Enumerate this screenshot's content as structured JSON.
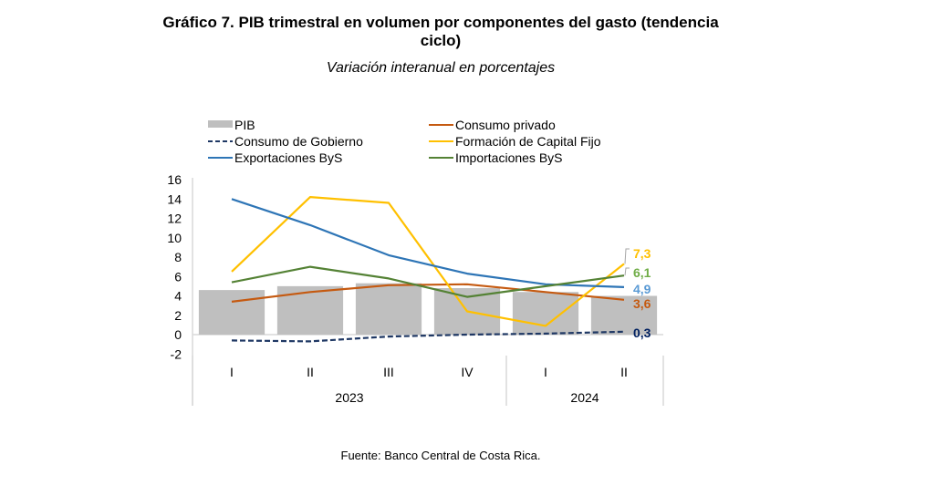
{
  "chart_data": {
    "type": "bar+line",
    "title": "Gráfico 7. PIB trimestral en volumen por componentes del gasto (tendencia ciclo)",
    "title_lines": [
      "Gráfico 7. PIB trimestral en volumen por componentes del gasto (tendencia",
      "ciclo)"
    ],
    "subtitle": "Variación interanual en porcentajes",
    "source": "Fuente: Banco Central de Costa Rica.",
    "xlabel": "",
    "ylabel": "",
    "ylim": [
      -2,
      16
    ],
    "yticks": [
      -2,
      0,
      2,
      4,
      6,
      8,
      10,
      12,
      14,
      16
    ],
    "grid": false,
    "legend_position": "top",
    "categories": [
      "I",
      "II",
      "III",
      "IV",
      "I",
      "II"
    ],
    "year_groups": [
      {
        "label": "2023",
        "count": 4
      },
      {
        "label": "2024",
        "count": 2
      }
    ],
    "series": [
      {
        "name": "PIB",
        "kind": "bar",
        "color": "#bfbfbf",
        "values": [
          4.6,
          5.0,
          5.3,
          4.8,
          4.4,
          4.0
        ],
        "end_label": null
      },
      {
        "name": "Consumo privado",
        "kind": "line",
        "color": "#c55a11",
        "dashed": false,
        "values": [
          3.4,
          4.4,
          5.1,
          5.2,
          4.4,
          3.6
        ],
        "end_label": "3,6"
      },
      {
        "name": "Consumo de Gobierno",
        "kind": "line",
        "color": "#1f3864",
        "dashed": true,
        "values": [
          -0.6,
          -0.7,
          -0.2,
          0.0,
          0.1,
          0.3
        ],
        "end_label": "0,3",
        "end_label_color": "#002060"
      },
      {
        "name": "Formación de Capital Fijo",
        "kind": "line",
        "color": "#ffc000",
        "dashed": false,
        "values": [
          6.5,
          14.2,
          13.6,
          2.4,
          0.9,
          7.3
        ],
        "end_label": "7,3"
      },
      {
        "name": "Exportaciones ByS",
        "kind": "line",
        "color": "#2e75b6",
        "dashed": false,
        "values": [
          14.0,
          11.3,
          8.2,
          6.3,
          5.2,
          4.9
        ],
        "end_label": "4,9",
        "end_label_color": "#5b9bd5"
      },
      {
        "name": "Importaciones ByS",
        "kind": "line",
        "color": "#548235",
        "dashed": false,
        "values": [
          5.4,
          7.0,
          5.8,
          3.9,
          5.0,
          6.1
        ],
        "end_label": "6,1",
        "end_label_color": "#70ad47"
      }
    ],
    "legend_order": [
      "PIB",
      "Consumo privado",
      "Consumo de Gobierno",
      "Formación de Capital Fijo",
      "Exportaciones ByS",
      "Importaciones ByS"
    ]
  }
}
